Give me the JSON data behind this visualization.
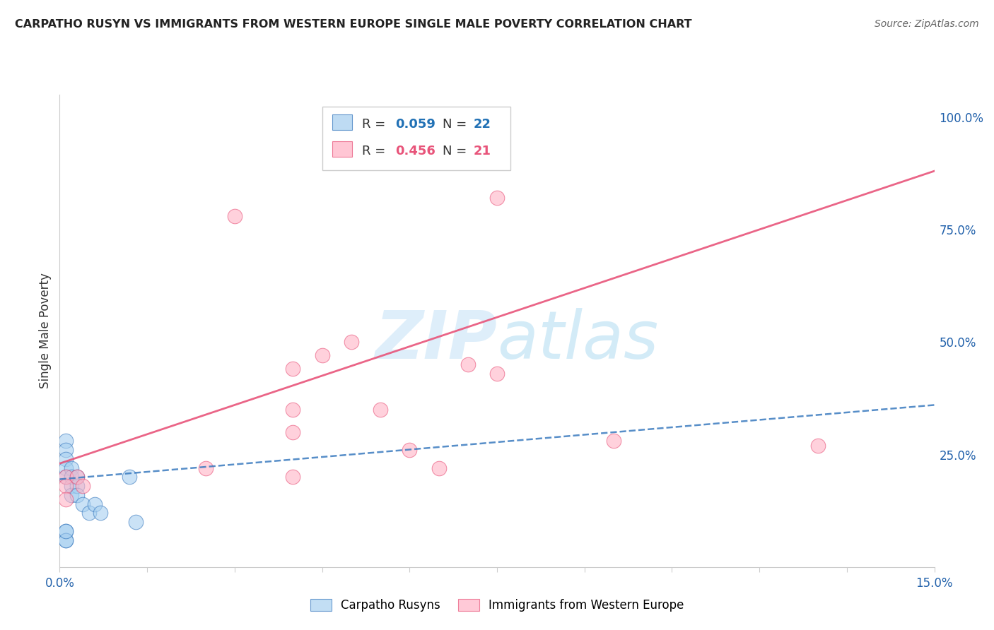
{
  "title": "CARPATHO RUSYN VS IMMIGRANTS FROM WESTERN EUROPE SINGLE MALE POVERTY CORRELATION CHART",
  "source": "Source: ZipAtlas.com",
  "ylabel": "Single Male Poverty",
  "legend_blue_label": "Carpatho Rusyns",
  "legend_pink_label": "Immigrants from Western Europe",
  "blue_color": "#a8d0f0",
  "pink_color": "#ffb3c6",
  "blue_line_color": "#3a7abf",
  "pink_line_color": "#e8547a",
  "blue_r_color": "#2171b5",
  "pink_r_color": "#e8547a",
  "background_color": "#ffffff",
  "grid_color": "#d8d8d8",
  "watermark_color": "#c8e4f8",
  "xmin": 0.0,
  "xmax": 0.15,
  "ymin": 0.0,
  "ymax": 1.05,
  "right_yticks": [
    0.0,
    0.25,
    0.5,
    0.75,
    1.0
  ],
  "right_yticklabels": [
    "",
    "25.0%",
    "50.0%",
    "75.0%",
    "100.0%"
  ],
  "blue_x": [
    0.001,
    0.001,
    0.001,
    0.001,
    0.001,
    0.002,
    0.002,
    0.002,
    0.002,
    0.003,
    0.003,
    0.003,
    0.004,
    0.005,
    0.006,
    0.007,
    0.012,
    0.013,
    0.001,
    0.001,
    0.001,
    0.001
  ],
  "blue_y": [
    0.28,
    0.26,
    0.24,
    0.22,
    0.2,
    0.22,
    0.2,
    0.18,
    0.16,
    0.2,
    0.18,
    0.16,
    0.14,
    0.12,
    0.14,
    0.12,
    0.2,
    0.1,
    0.08,
    0.06,
    0.06,
    0.08
  ],
  "pink_x": [
    0.001,
    0.001,
    0.001,
    0.003,
    0.004,
    0.025,
    0.03,
    0.04,
    0.04,
    0.04,
    0.04,
    0.045,
    0.05,
    0.055,
    0.06,
    0.065,
    0.07,
    0.075,
    0.095,
    0.075,
    0.13
  ],
  "pink_y": [
    0.2,
    0.18,
    0.15,
    0.2,
    0.18,
    0.22,
    0.78,
    0.44,
    0.35,
    0.3,
    0.2,
    0.47,
    0.5,
    0.35,
    0.26,
    0.22,
    0.45,
    0.82,
    0.28,
    0.43,
    0.27
  ],
  "blue_trend_x": [
    0.0,
    0.15
  ],
  "blue_trend_y": [
    0.195,
    0.36
  ],
  "pink_trend_x": [
    0.0,
    0.15
  ],
  "pink_trend_y": [
    0.23,
    0.88
  ]
}
